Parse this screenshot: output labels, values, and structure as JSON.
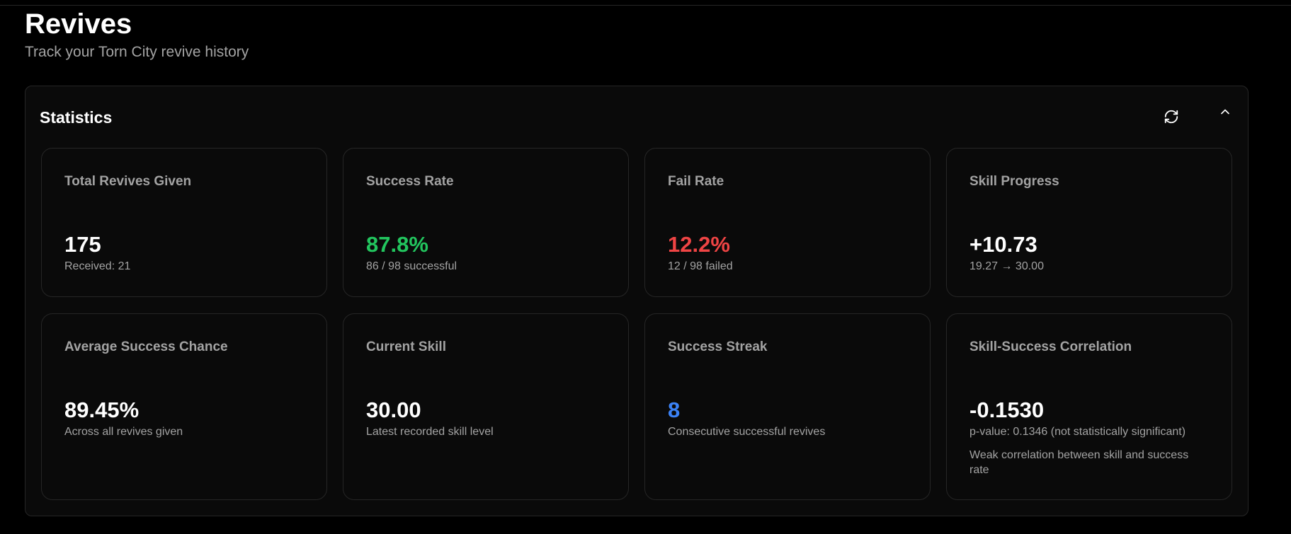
{
  "header": {
    "title": "Revives",
    "subtitle": "Track your Torn City revive history"
  },
  "statistics": {
    "title": "Statistics",
    "refresh_icon": "refresh-icon",
    "collapse_icon": "chevron-up-icon",
    "colors": {
      "positive": "#22c55e",
      "negative": "#ef4444",
      "accent": "#3b82f6"
    },
    "cards": [
      {
        "label": "Total Revives Given",
        "value": "175",
        "sub": "Received: 21"
      },
      {
        "label": "Success Rate",
        "value": "87.8%",
        "sub": "86 / 98 successful"
      },
      {
        "label": "Fail Rate",
        "value": "12.2%",
        "sub": "12 / 98 failed"
      },
      {
        "label": "Skill Progress",
        "value": "+10.73",
        "sub": "19.27 → 30.00"
      },
      {
        "label": "Average Success Chance",
        "value": "89.45%",
        "sub": "Across all revives given"
      },
      {
        "label": "Current Skill",
        "value": "30.00",
        "sub": "Latest recorded skill level"
      },
      {
        "label": "Success Streak",
        "value": "8",
        "sub": "Consecutive successful revives"
      },
      {
        "label": "Skill-Success Correlation",
        "value": "-0.1530",
        "sub": "p-value: 0.1346 (not statistically significant)",
        "note": "Weak correlation between skill and success rate"
      }
    ]
  }
}
